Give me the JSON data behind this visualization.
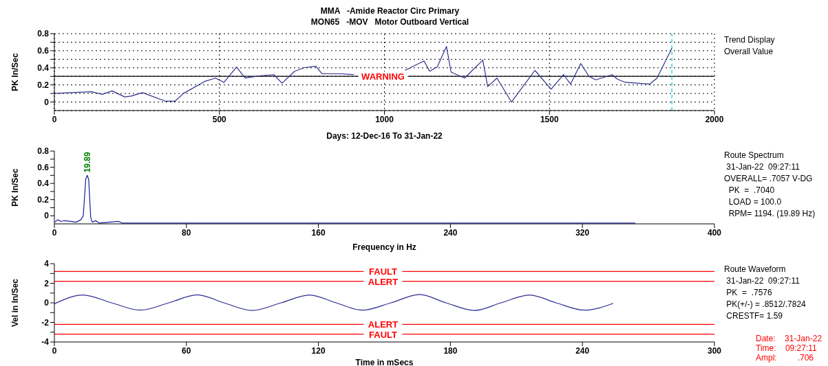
{
  "chart_data": [
    {
      "type": "line",
      "title": "MMA   -Amide Reactor Circ Primary",
      "subtitle": "MON65   -MOV   Motor Outboard Vertical",
      "xlabel": "Days:   12-Dec-16  To  31-Jan-22",
      "ylabel": "PK In/Sec",
      "x": [
        0,
        50,
        113,
        145,
        175,
        213,
        233,
        267,
        336,
        366,
        391,
        455,
        488,
        514,
        552,
        578,
        629,
        665,
        690,
        728,
        756,
        792,
        811,
        867,
        908,
        990,
        1063,
        1088,
        1120,
        1137,
        1160,
        1188,
        1202,
        1243,
        1298,
        1313,
        1341,
        1385,
        1456,
        1505,
        1543,
        1564,
        1595,
        1620,
        1641,
        1690,
        1705,
        1730,
        1804,
        1826,
        1871
      ],
      "series": [
        {
          "color": "#2e2e8c",
          "values": [
            0.1,
            0.11,
            0.12,
            0.09,
            0.13,
            0.06,
            0.07,
            0.11,
            0.01,
            0.01,
            0.1,
            0.24,
            0.28,
            0.23,
            0.41,
            0.28,
            0.31,
            0.32,
            0.22,
            0.36,
            0.4,
            0.42,
            0.33,
            0.33,
            0.32,
            null,
            0.37,
            0.42,
            0.48,
            0.36,
            0.41,
            0.65,
            0.35,
            0.28,
            0.49,
            0.18,
            0.28,
            0.0,
            0.37,
            0.15,
            0.32,
            0.21,
            0.45,
            0.3,
            0.26,
            0.32,
            0.27,
            0.23,
            0.21,
            0.28,
            0.63
          ]
        }
      ],
      "xlim": [
        0,
        2000
      ],
      "xticks": [
        0,
        500,
        1000,
        1500,
        2000
      ],
      "ylim": [
        -0.1,
        0.8
      ],
      "yticks": [
        0,
        {
          "value": 0.1,
          "label": null
        },
        0.2,
        {
          "value": 0.3,
          "label": null
        },
        0.4,
        {
          "value": 0.5,
          "label": null
        },
        0.6,
        {
          "value": 0.7,
          "label": null
        },
        0.8
      ],
      "grid": true,
      "ref_lines": [
        {
          "axis": "y",
          "value": 0.3,
          "label": "WARNING",
          "color": "#000000"
        },
        {
          "axis": "x",
          "value": 1871,
          "color": "#00c8e0",
          "line_style": "dashed"
        }
      ],
      "annotations": [
        "Trend Display",
        "Overall Value"
      ]
    },
    {
      "type": "line",
      "xlabel": "Frequency in Hz",
      "ylabel": "PK In/Sec",
      "x": [
        0,
        2,
        4,
        6,
        10,
        13,
        16,
        17.5,
        19,
        19.89,
        20.8,
        22,
        23,
        25,
        27,
        39,
        41,
        80,
        352
      ],
      "series": [
        {
          "color": "#1a1aa0",
          "values": [
            -0.08,
            -0.05,
            -0.07,
            -0.06,
            -0.07,
            -0.08,
            -0.05,
            0,
            0.45,
            0.5,
            0.45,
            -0.02,
            -0.08,
            -0.06,
            -0.09,
            -0.07,
            -0.09,
            -0.09,
            -0.09
          ]
        }
      ],
      "xlim": [
        0,
        400
      ],
      "xticks": [
        0,
        80,
        160,
        240,
        320,
        400
      ],
      "ylim": [
        -0.1,
        0.8
      ],
      "yticks": [
        0,
        {
          "value": 0.1,
          "label": null
        },
        0.2,
        {
          "value": 0.3,
          "label": null
        },
        0.4,
        {
          "value": 0.5,
          "label": null
        },
        0.6,
        {
          "value": 0.7,
          "label": null
        },
        0.8
      ],
      "annotations": [
        {
          "text": "19.89",
          "x": 19.89,
          "y": 0.5
        },
        "Route Spectrum",
        " 31-Jan-22  09:27:11",
        "OVERALL= .7057 V-DG",
        "  PK  =  .7040",
        "  LOAD = 100.0",
        "  RPM= 1194. (19.89 Hz)"
      ]
    },
    {
      "type": "line",
      "xlabel": "Time in mSecs",
      "ylabel": "Vel in In/Sec",
      "x": [
        0,
        13,
        26,
        39,
        52,
        65,
        77,
        90,
        103,
        116,
        128,
        140,
        153,
        166,
        178,
        191,
        203,
        216,
        228,
        241,
        254
      ],
      "series": [
        {
          "color": "#2a2a90",
          "values": [
            -0.1,
            0.8,
            0,
            -0.75,
            0,
            0.82,
            0,
            -0.78,
            0,
            0.8,
            0,
            -0.75,
            0,
            0.85,
            0,
            -0.78,
            0,
            0.8,
            0,
            -0.75,
            -0.05
          ]
        }
      ],
      "xlim": [
        0,
        300
      ],
      "xticks": [
        0,
        60,
        120,
        180,
        240,
        300
      ],
      "ylim": [
        -4,
        4
      ],
      "yticks": [
        -4,
        {
          "value": -3,
          "label": null
        },
        -2,
        {
          "value": -1,
          "label": null
        },
        0,
        {
          "value": 1,
          "label": null
        },
        2,
        {
          "value": 3,
          "label": null
        },
        4
      ],
      "ref_lines": [
        {
          "axis": "y",
          "value": 3.2,
          "label": "FAULT",
          "color": "#ff0000"
        },
        {
          "axis": "y",
          "value": 2.2,
          "label": "ALERT",
          "color": "#ff0000"
        },
        {
          "axis": "y",
          "value": -2.2,
          "label": "ALERT",
          "color": "#ff0000"
        },
        {
          "axis": "y",
          "value": -3.2,
          "label": "FAULT",
          "color": "#ff0000"
        }
      ],
      "annotations": [
        "Route Waveform",
        " 31-Jan-22  09:27:11",
        " PK  =  .7576",
        " PK(+/-) = .8512/.7824",
        " CRESTF= 1.59",
        "Date:    31-Jan-22",
        "Time:    09:27:11",
        "Ampl:         .706"
      ]
    }
  ]
}
